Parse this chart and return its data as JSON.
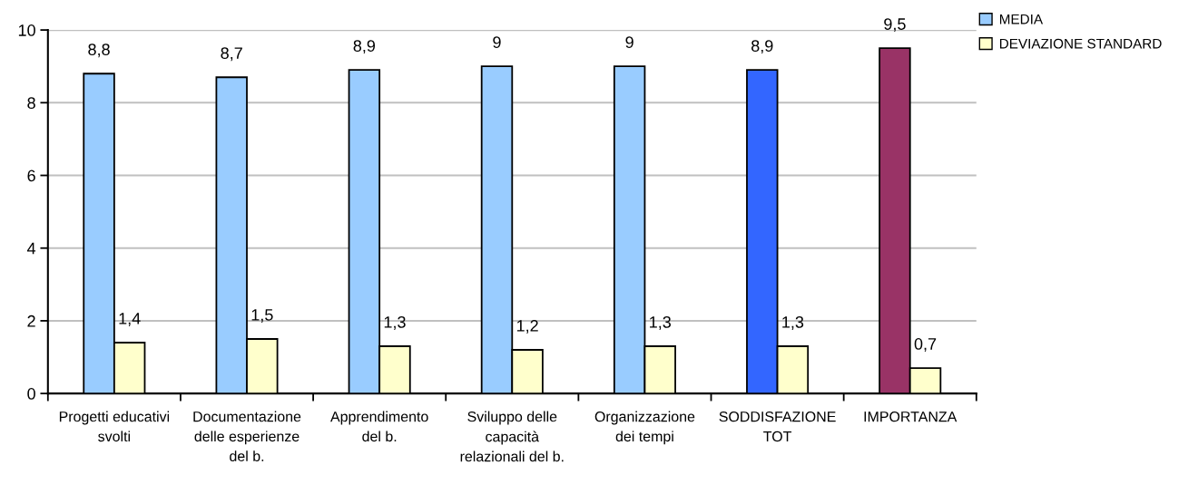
{
  "chart_data": {
    "type": "bar",
    "categories": [
      "Progetti educativi\nsvolti",
      "Documentazione\ndelle esperienze\ndel b.",
      "Apprendimento\ndel b.",
      "Sviluppo delle\ncapacità\nrelazionali del b.",
      "Organizzazione\ndei tempi",
      "SODDISFAZIONE\nTOT",
      "IMPORTANZA"
    ],
    "series": [
      {
        "name": "MEDIA",
        "color": "#99ccff",
        "colors": [
          "#99ccff",
          "#99ccff",
          "#99ccff",
          "#99ccff",
          "#99ccff",
          "#3366ff",
          "#993366"
        ],
        "values": [
          8.8,
          8.7,
          8.9,
          9,
          9,
          8.9,
          9.5
        ],
        "value_labels": [
          "8,8",
          "8,7",
          "8,9",
          "9",
          "9",
          "8,9",
          "9,5"
        ]
      },
      {
        "name": "DEVIAZIONE STANDARD",
        "color": "#ffffcc",
        "values": [
          1.4,
          1.5,
          1.3,
          1.2,
          1.3,
          1.3,
          0.7
        ],
        "value_labels": [
          "1,4",
          "1,5",
          "1,3",
          "1,2",
          "1,3",
          "1,3",
          "0,7"
        ]
      }
    ],
    "ylim": [
      0,
      10
    ],
    "yticks": [
      0,
      2,
      4,
      6,
      8,
      10
    ],
    "grid": "y",
    "legend": "top right"
  }
}
